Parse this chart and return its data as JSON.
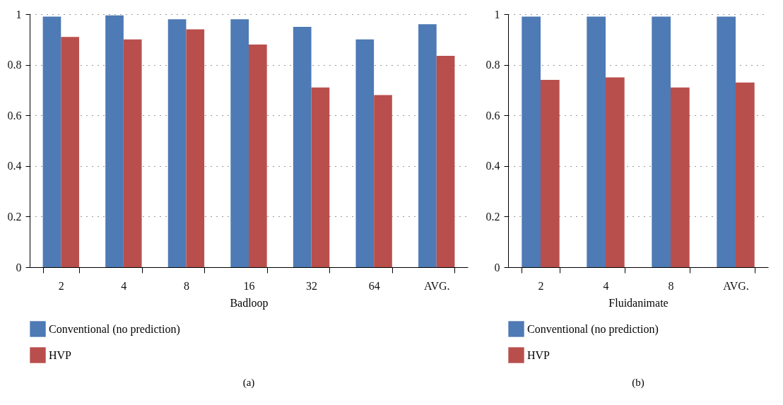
{
  "chart_data": [
    {
      "type": "bar",
      "categories": [
        "2",
        "4",
        "8",
        "16",
        "32",
        "64",
        "AVG."
      ],
      "xlabel": "Badloop",
      "series": [
        {
          "name": "Conventional (no prediction)",
          "color": "#4e7ab5",
          "values": [
            0.99,
            0.995,
            0.98,
            0.98,
            0.95,
            0.9,
            0.96
          ]
        },
        {
          "name": "HVP",
          "color": "#b94f4c",
          "values": [
            0.91,
            0.9,
            0.94,
            0.88,
            0.71,
            0.68,
            0.835
          ]
        }
      ],
      "ylim": [
        0,
        1
      ],
      "yticks": [
        0,
        0.2,
        0.4,
        0.6,
        0.8,
        1
      ],
      "grid": "y",
      "legend": "bottom",
      "annotations": [
        "(a)"
      ]
    },
    {
      "type": "bar",
      "categories": [
        "2",
        "4",
        "8",
        "AVG."
      ],
      "xlabel": "Fluidanimate",
      "series": [
        {
          "name": "Conventional (no prediction)",
          "color": "#4e7ab5",
          "values": [
            0.99,
            0.99,
            0.99,
            0.99
          ]
        },
        {
          "name": "HVP",
          "color": "#b94f4c",
          "values": [
            0.74,
            0.75,
            0.71,
            0.73
          ]
        }
      ],
      "ylim": [
        0,
        1
      ],
      "yticks": [
        0,
        0.2,
        0.4,
        0.6,
        0.8,
        1
      ],
      "grid": "y",
      "legend": "bottom",
      "annotations": [
        "(b)"
      ]
    }
  ]
}
